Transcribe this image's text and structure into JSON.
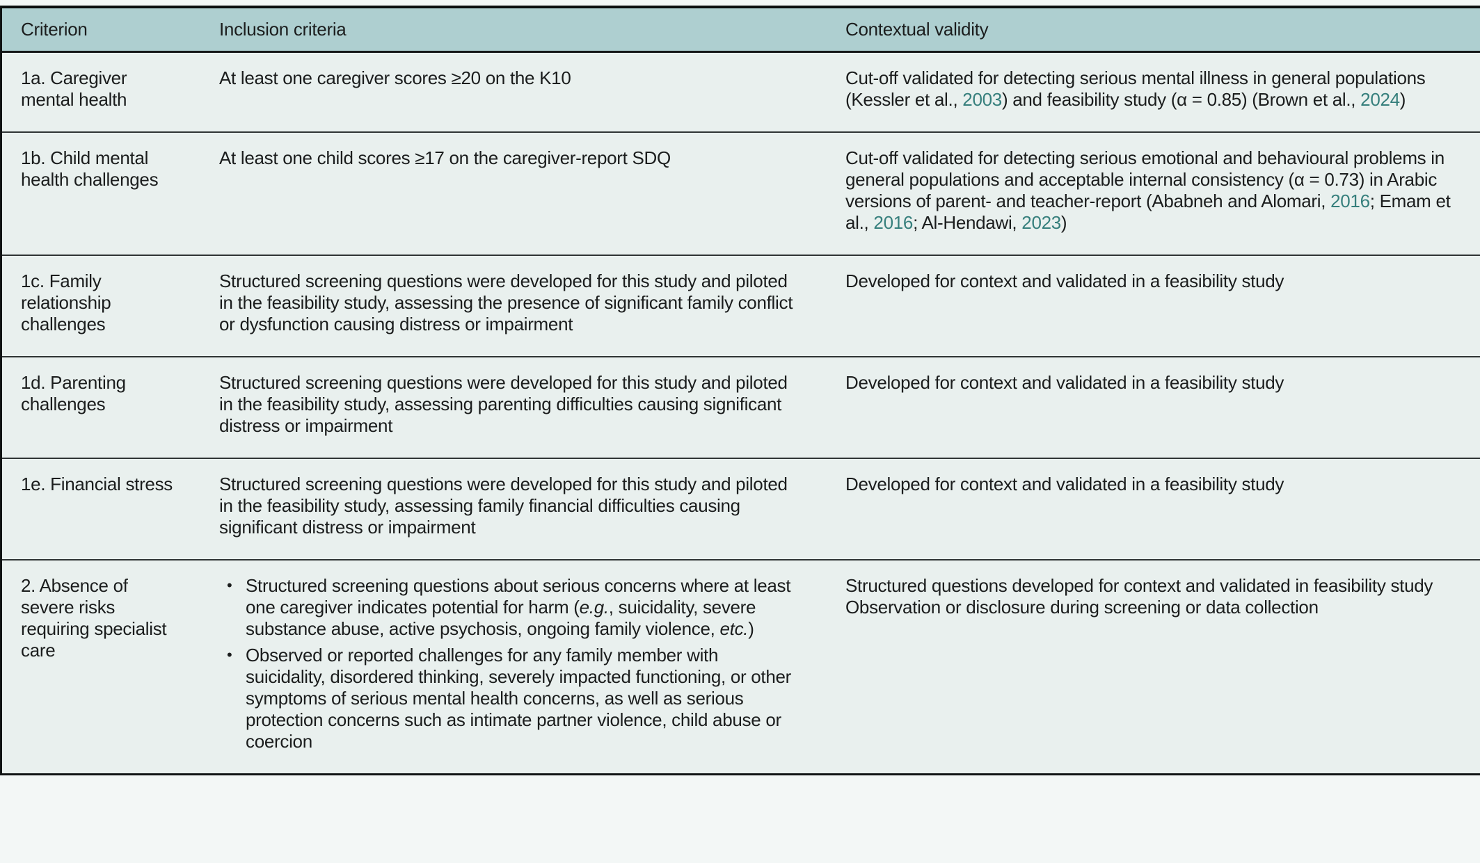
{
  "table": {
    "bullet_char": "•",
    "colors": {
      "header_bg": "#aecfd0",
      "row_bg": "#e9f0ee",
      "border_dark": "#101313",
      "row_divider": "#2f3434",
      "link": "#367f7c",
      "text": "#1b1d1d"
    },
    "columns": [
      {
        "key": "criterion",
        "label": "Criterion"
      },
      {
        "key": "inclusion",
        "label": "Inclusion criteria"
      },
      {
        "key": "validity",
        "label": "Contextual validity"
      }
    ],
    "rows": [
      {
        "id": "1a",
        "criterion": "1a. Caregiver mental health",
        "inclusion": {
          "runs": [
            {
              "text": "At least one caregiver scores ≥20 on the K10"
            }
          ]
        },
        "validity": {
          "runs": [
            {
              "text": "Cut-off validated for detecting serious mental illness in general populations (Kessler et al., "
            },
            {
              "text": "2003",
              "style": "link"
            },
            {
              "text": ") and feasibility study (α = 0.85) (Brown et al., "
            },
            {
              "text": "2024",
              "style": "link"
            },
            {
              "text": ")"
            }
          ]
        }
      },
      {
        "id": "1b",
        "criterion": "1b. Child mental health challenges",
        "inclusion": {
          "runs": [
            {
              "text": "At least one child scores ≥17 on the caregiver-report SDQ"
            }
          ]
        },
        "validity": {
          "runs": [
            {
              "text": "Cut-off validated for detecting serious emotional and behavioural problems in general populations and acceptable internal consistency (α = 0.73) in Arabic versions of parent- and teacher-report (Ababneh and Alomari, "
            },
            {
              "text": "2016",
              "style": "link"
            },
            {
              "text": "; Emam et al., "
            },
            {
              "text": "2016",
              "style": "link"
            },
            {
              "text": "; Al-Hendawi, "
            },
            {
              "text": "2023",
              "style": "link"
            },
            {
              "text": ")"
            }
          ]
        }
      },
      {
        "id": "1c",
        "criterion": "1c. Family relationship challenges",
        "inclusion": {
          "runs": [
            {
              "text": "Structured screening questions were developed for this study and piloted in the feasibility study, assessing the presence of significant family conflict or dysfunction causing distress or impairment"
            }
          ]
        },
        "validity": {
          "runs": [
            {
              "text": "Developed for context and validated in a feasibility study"
            }
          ]
        }
      },
      {
        "id": "1d",
        "criterion": "1d. Parenting challenges",
        "inclusion": {
          "runs": [
            {
              "text": "Structured screening questions were developed for this study and piloted in the feasibility study, assessing parenting difficulties causing significant distress or impairment"
            }
          ]
        },
        "validity": {
          "runs": [
            {
              "text": "Developed for context and validated in a feasibility study"
            }
          ]
        }
      },
      {
        "id": "1e",
        "criterion": "1e. Financial stress",
        "inclusion": {
          "runs": [
            {
              "text": "Structured screening questions were developed for this study and piloted in the feasibility study, assessing family financial difficulties causing significant distress or impairment"
            }
          ]
        },
        "validity": {
          "runs": [
            {
              "text": "Developed for context and validated in a feasibility study"
            }
          ]
        }
      },
      {
        "id": "2",
        "criterion": "2. Absence of severe risks requiring specialist care",
        "inclusion": {
          "bullets": [
            [
              {
                "text": "Structured screening questions about serious concerns where at least one caregiver indicates potential for harm ("
              },
              {
                "text": "e.g.",
                "style": "italic"
              },
              {
                "text": ", suicidality, severe substance abuse, active psychosis, ongoing family vio­lence, "
              },
              {
                "text": "etc.",
                "style": "italic"
              },
              {
                "text": ")"
              }
            ],
            [
              {
                "text": "Observed or reported challenges for any family member with suicidality, disordered thinking, severely impacted functioning, or other symptoms of serious mental health concerns, as well as serious protection concerns such as intimate partner violence, child abuse or coercion"
              }
            ]
          ]
        },
        "validity": {
          "paras": [
            [
              {
                "text": "Structured questions developed for context and validated in feasibility study"
              }
            ],
            [
              {
                "text": "Observation or disclosure during screening or data collection"
              }
            ]
          ]
        }
      }
    ]
  }
}
